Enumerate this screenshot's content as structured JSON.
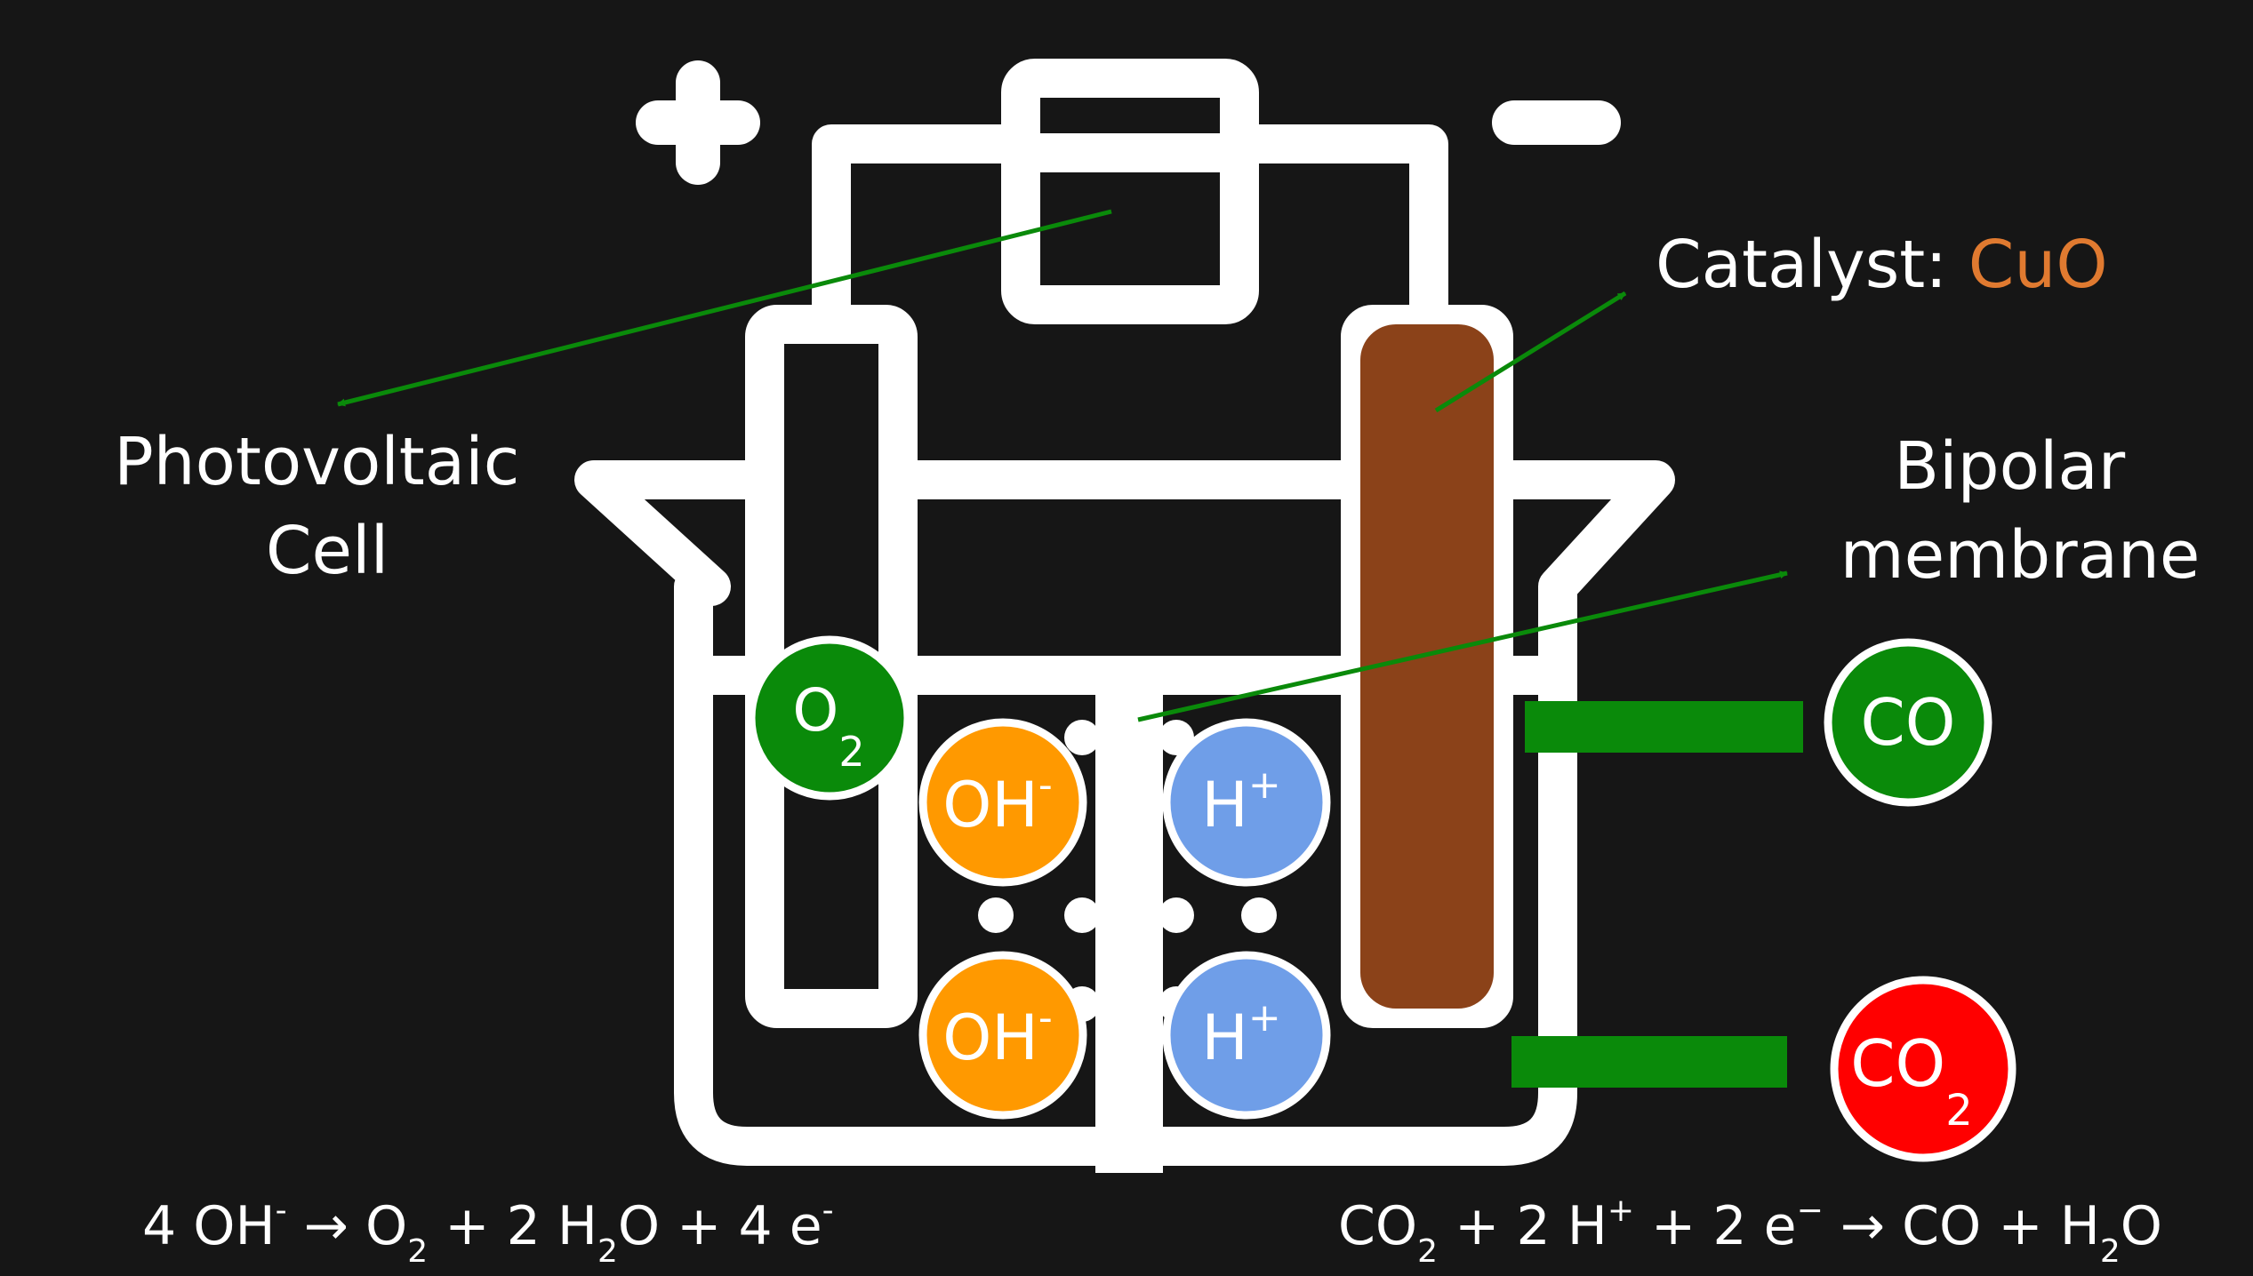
{
  "polarity": {
    "positive": "+",
    "negative": "−"
  },
  "labels": {
    "photovoltaic_line1": "Photovoltaic",
    "photovoltaic_line2": "Cell",
    "catalyst_prefix": "Catalyst: ",
    "catalyst_name": "CuO",
    "bipolar_line1": "Bipolar",
    "bipolar_line2": "membrane"
  },
  "species": {
    "o2": {
      "base": "O",
      "sub": "2"
    },
    "oh": {
      "base": "OH",
      "sup": "-"
    },
    "h": {
      "base": "H",
      "sup": "+"
    },
    "co": {
      "text": "CO"
    },
    "co2": {
      "base": "CO",
      "sub": "2"
    }
  },
  "equations": {
    "anode": {
      "t1": "4 OH",
      "s1": "-",
      "t2": " → O",
      "b1": "2",
      "t3": " + 2 H",
      "b2": "2",
      "t4": "O + 4 e",
      "s2": "-"
    },
    "cathode": {
      "t1": "CO",
      "b1": "2",
      "t2": " + 2 H",
      "s1": "+",
      "t3": " + 2 e",
      "s2": "−",
      "t4": " → CO + H",
      "b2": "2",
      "t5": "O"
    }
  },
  "colors": {
    "background": "#161616",
    "outline": "#ffffff",
    "catalyst": "#8b4219",
    "catalyst_text": "#e07a30",
    "oxygen": "#0a8a0a",
    "hydroxide": "#ff9900",
    "proton": "#6f9ee8",
    "co2": "#ff0000",
    "arrow": "#0a8a0a"
  }
}
